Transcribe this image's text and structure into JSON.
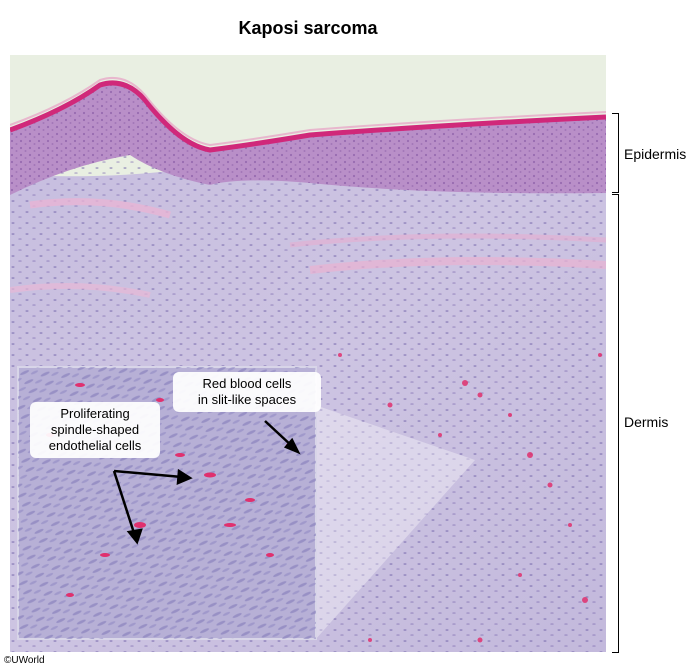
{
  "title": "Kaposi sarcoma",
  "labels": {
    "epidermis": "Epidermis",
    "dermis": "Dermis"
  },
  "callouts": {
    "rbc_line1": "Red blood cells",
    "rbc_line2": "in slit-like spaces",
    "spindle_line1": "Proliferating",
    "spindle_line2": "spindle-shaped",
    "spindle_line3": "endothelial cells"
  },
  "credit": "©UWorld",
  "colors": {
    "background_tissue": "#c9c2e0",
    "epidermis": "#b690c6",
    "keratin_edge": "#d0287a",
    "rbc": "#e0306e",
    "sky": "#e9efe2"
  }
}
